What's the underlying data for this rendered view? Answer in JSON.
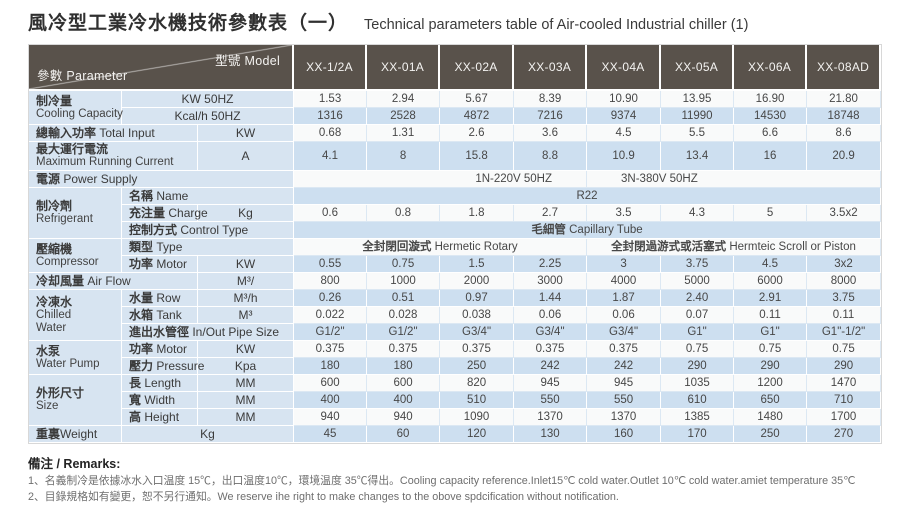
{
  "page": {
    "title_zh": "風冷型工業冷水機技術參數表（一）",
    "title_en": "Technical parameters table of Air-cooled Industrial chiller (1)"
  },
  "table": {
    "corner": {
      "model": "型號 Model",
      "param": "參數 Parameter"
    },
    "models": [
      "XX-1/2A",
      "XX-01A",
      "XX-02A",
      "XX-03A",
      "XX-04A",
      "XX-05A",
      "XX-06A",
      "XX-08AD"
    ],
    "rows": [
      {
        "band": "w",
        "left": [
          {
            "lines": [
              "制冷量",
              "Cooling Capacity"
            ],
            "cls": "group",
            "rowspan": 2,
            "colspan": 1,
            "name": "label-cooling-capacity"
          },
          {
            "lines": [
              "KW 50HZ"
            ],
            "cls": "unit",
            "colspan": 2,
            "name": "label-kw-50hz"
          }
        ],
        "cells": [
          "1.53",
          "2.94",
          "5.67",
          "8.39",
          "10.90",
          "13.95",
          "16.90",
          "21.80"
        ]
      },
      {
        "band": "b",
        "left": [
          {
            "lines": [
              "Kcal/h 50HZ"
            ],
            "cls": "unit",
            "colspan": 2,
            "name": "label-kcal-50hz"
          }
        ],
        "cells": [
          "1316",
          "2528",
          "4872",
          "7216",
          "9374",
          "11990",
          "14530",
          "18748"
        ]
      },
      {
        "band": "w",
        "left": [
          {
            "lines": [
              "總輸入功率 Total Input"
            ],
            "cls": "group",
            "colspan": 2,
            "name": "label-total-input"
          },
          {
            "lines": [
              "KW"
            ],
            "cls": "unit",
            "colspan": 1,
            "name": "unit-kw"
          }
        ],
        "cells": [
          "0.68",
          "1.31",
          "2.6",
          "3.6",
          "4.5",
          "5.5",
          "6.6",
          "8.6"
        ]
      },
      {
        "band": "b",
        "left": [
          {
            "lines": [
              "最大運行電流",
              "Maximum Running Current"
            ],
            "cls": "group",
            "colspan": 2,
            "name": "label-max-running-current"
          },
          {
            "lines": [
              "A"
            ],
            "cls": "unit",
            "colspan": 1,
            "name": "unit-a"
          }
        ],
        "cells": [
          "4.1",
          "8",
          "15.8",
          "8.8",
          "10.9",
          "13.4",
          "16",
          "20.9"
        ]
      },
      {
        "band": "w",
        "left": [
          {
            "lines": [
              "電源 Power Supply"
            ],
            "cls": "group",
            "colspan": 3,
            "name": "label-power-supply"
          }
        ],
        "cells": [
          {
            "t": "1N-220V 50HZ",
            "colspan": 4,
            "cls": "ps-l"
          },
          {
            "t": "3N-380V 50HZ",
            "colspan": 4,
            "cls": "ps-r"
          }
        ]
      },
      {
        "band": "b",
        "left": [
          {
            "lines": [
              "制冷劑",
              "Refrigerant"
            ],
            "cls": "group",
            "rowspan": 3,
            "colspan": 1,
            "name": "label-refrigerant"
          },
          {
            "lines": [
              "名稱 Name"
            ],
            "cls": "sub",
            "colspan": 2,
            "name": "label-refrigerant-name"
          }
        ],
        "cells": [
          {
            "t": "R22",
            "colspan": 8
          }
        ]
      },
      {
        "band": "w",
        "left": [
          {
            "lines": [
              "充注量 Charge"
            ],
            "cls": "sub",
            "colspan": 1,
            "name": "label-charge"
          },
          {
            "lines": [
              "Kg"
            ],
            "cls": "unit",
            "colspan": 1,
            "name": "unit-kg"
          }
        ],
        "cells": [
          "0.6",
          "0.8",
          "1.8",
          "2.7",
          "3.5",
          "4.3",
          "5",
          "3.5x2"
        ]
      },
      {
        "band": "b",
        "left": [
          {
            "lines": [
              "控制方式 Control Type"
            ],
            "cls": "sub",
            "colspan": 2,
            "name": "label-control-type"
          }
        ],
        "cells": [
          {
            "t": "毛細管 Capillary Tube",
            "colspan": 8
          }
        ]
      },
      {
        "band": "w",
        "left": [
          {
            "lines": [
              "壓縮機",
              "Compressor"
            ],
            "cls": "group",
            "rowspan": 2,
            "colspan": 1,
            "name": "label-compressor"
          },
          {
            "lines": [
              "類型 Type"
            ],
            "cls": "sub",
            "colspan": 2,
            "name": "label-compressor-type"
          }
        ],
        "cells": [
          {
            "t": "全封閉回漩式 Hermetic Rotary",
            "colspan": 4
          },
          {
            "t": "全封閉過游式或活塞式 Hermteic Scroll or Piston",
            "colspan": 4
          }
        ]
      },
      {
        "band": "b",
        "left": [
          {
            "lines": [
              "功率 Motor"
            ],
            "cls": "sub",
            "colspan": 1,
            "name": "label-compressor-motor"
          },
          {
            "lines": [
              "KW"
            ],
            "cls": "unit",
            "colspan": 1,
            "name": "unit-kw"
          }
        ],
        "cells": [
          "0.55",
          "0.75",
          "1.5",
          "2.25",
          "3",
          "3.75",
          "4.5",
          "3x2"
        ]
      },
      {
        "band": "w",
        "left": [
          {
            "lines": [
              "冷却風量 Air Flow"
            ],
            "cls": "group",
            "colspan": 2,
            "name": "label-air-flow"
          },
          {
            "lines": [
              "M³/"
            ],
            "cls": "unit",
            "colspan": 1,
            "name": "unit-m3"
          }
        ],
        "cells": [
          "800",
          "1000",
          "2000",
          "3000",
          "4000",
          "5000",
          "6000",
          "8000"
        ]
      },
      {
        "band": "b",
        "left": [
          {
            "lines": [
              "冷凍水",
              "Chilled",
              "Water"
            ],
            "cls": "group",
            "rowspan": 3,
            "colspan": 1,
            "name": "label-chilled-water"
          },
          {
            "lines": [
              "水量 Row"
            ],
            "cls": "sub",
            "colspan": 1,
            "name": "label-water-flow"
          },
          {
            "lines": [
              "M³/h"
            ],
            "cls": "unit",
            "colspan": 1,
            "name": "unit-m3h"
          }
        ],
        "cells": [
          "0.26",
          "0.51",
          "0.97",
          "1.44",
          "1.87",
          "2.40",
          "2.91",
          "3.75"
        ]
      },
      {
        "band": "w",
        "left": [
          {
            "lines": [
              "水箱 Tank"
            ],
            "cls": "sub",
            "colspan": 1,
            "name": "label-tank"
          },
          {
            "lines": [
              "M³"
            ],
            "cls": "unit",
            "colspan": 1,
            "name": "unit-m3"
          }
        ],
        "cells": [
          "0.022",
          "0.028",
          "0.038",
          "0.06",
          "0.06",
          "0.07",
          "0.11",
          "0.11"
        ]
      },
      {
        "band": "b",
        "left": [
          {
            "lines": [
              "進出水管徑 In/Out Pipe Size"
            ],
            "cls": "sub",
            "colspan": 2,
            "name": "label-pipe-size"
          }
        ],
        "cells": [
          "G1/2\"",
          "G1/2\"",
          "G3/4\"",
          "G3/4\"",
          "G3/4\"",
          "G1\"",
          "G1\"",
          "G1\"-1/2\""
        ]
      },
      {
        "band": "w",
        "left": [
          {
            "lines": [
              "水泵",
              "Water Pump"
            ],
            "cls": "group",
            "rowspan": 2,
            "colspan": 1,
            "name": "label-water-pump"
          },
          {
            "lines": [
              "功率 Motor"
            ],
            "cls": "sub",
            "colspan": 1,
            "name": "label-pump-motor"
          },
          {
            "lines": [
              "KW"
            ],
            "cls": "unit",
            "colspan": 1,
            "name": "unit-kw"
          }
        ],
        "cells": [
          "0.375",
          "0.375",
          "0.375",
          "0.375",
          "0.375",
          "0.75",
          "0.75",
          "0.75"
        ]
      },
      {
        "band": "b",
        "left": [
          {
            "lines": [
              "壓力 Pressure"
            ],
            "cls": "sub",
            "colspan": 1,
            "name": "label-pressure"
          },
          {
            "lines": [
              "Kpa"
            ],
            "cls": "unit",
            "colspan": 1,
            "name": "unit-kpa"
          }
        ],
        "cells": [
          "180",
          "180",
          "250",
          "242",
          "242",
          "290",
          "290",
          "290"
        ]
      },
      {
        "band": "w",
        "left": [
          {
            "lines": [
              "外形尺寸",
              "Size"
            ],
            "cls": "group",
            "rowspan": 3,
            "colspan": 1,
            "name": "label-size"
          },
          {
            "lines": [
              "長 Length"
            ],
            "cls": "sub",
            "colspan": 1,
            "name": "label-length"
          },
          {
            "lines": [
              "MM"
            ],
            "cls": "unit",
            "colspan": 1,
            "name": "unit-mm"
          }
        ],
        "cells": [
          "600",
          "600",
          "820",
          "945",
          "945",
          "1035",
          "1200",
          "1470"
        ]
      },
      {
        "band": "b",
        "left": [
          {
            "lines": [
              "寬 Width"
            ],
            "cls": "sub",
            "colspan": 1,
            "name": "label-width"
          },
          {
            "lines": [
              "MM"
            ],
            "cls": "unit",
            "colspan": 1,
            "name": "unit-mm"
          }
        ],
        "cells": [
          "400",
          "400",
          "510",
          "550",
          "550",
          "610",
          "650",
          "710"
        ]
      },
      {
        "band": "w",
        "left": [
          {
            "lines": [
              "高 Height"
            ],
            "cls": "sub",
            "colspan": 1,
            "name": "label-height"
          },
          {
            "lines": [
              "MM"
            ],
            "cls": "unit",
            "colspan": 1,
            "name": "unit-mm"
          }
        ],
        "cells": [
          "940",
          "940",
          "1090",
          "1370",
          "1370",
          "1385",
          "1480",
          "1700"
        ]
      },
      {
        "band": "b",
        "left": [
          {
            "lines": [
              "重裏Weight"
            ],
            "cls": "group",
            "colspan": 1,
            "name": "label-weight"
          },
          {
            "lines": [
              "Kg"
            ],
            "cls": "unit",
            "colspan": 2,
            "name": "unit-kg"
          }
        ],
        "cells": [
          "45",
          "60",
          "120",
          "130",
          "160",
          "170",
          "250",
          "270"
        ]
      }
    ]
  },
  "remarks": {
    "heading": "備注 / Remarks:",
    "lines": [
      "1、名義制冷是依據冰水入口温度 15℃，出口温度10℃，環境温度 35℃得出。Cooling capacity reference.Inlet15℃ cold water.Outlet 10℃ cold water.amiet temperature 35℃",
      "2、目錄規格如有變更，恕不另行通知。We reserve ihe right to make changes to the obove spdcification without notification."
    ]
  }
}
